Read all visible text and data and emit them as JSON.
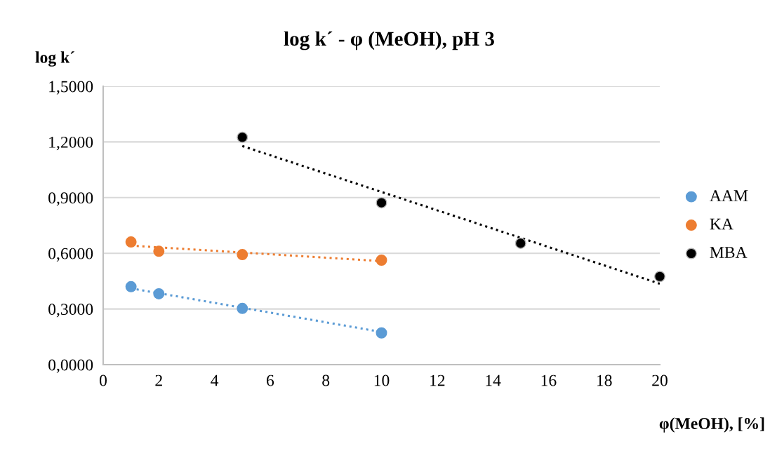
{
  "chart_data": {
    "type": "scatter",
    "title": "log k´ - φ (MeOH), pH 3",
    "ylabel": "log k´",
    "xlabel": "φ(MeOH), [%]",
    "xlim": [
      0,
      20
    ],
    "xticks": [
      0,
      2,
      4,
      6,
      8,
      10,
      12,
      14,
      16,
      18,
      20
    ],
    "ylim": [
      0,
      1.5
    ],
    "yticks": [
      {
        "value": 0,
        "label": "0,0000"
      },
      {
        "value": 0.3,
        "label": "0,3000"
      },
      {
        "value": 0.6,
        "label": "0,6000"
      },
      {
        "value": 0.9,
        "label": "0,9000"
      },
      {
        "value": 1.2,
        "label": "1,2000"
      },
      {
        "value": 1.5,
        "label": "1,5000"
      }
    ],
    "grid": "y",
    "legend": "right",
    "marker": "circle",
    "series": [
      {
        "name": "AAM",
        "color": "#5b9bd5",
        "x": [
          1,
          2,
          5,
          10
        ],
        "values": [
          0.42,
          0.382,
          0.303,
          0.171
        ]
      },
      {
        "name": "KA",
        "color": "#ed7d31",
        "x": [
          1,
          2,
          5,
          10
        ],
        "values": [
          0.661,
          0.611,
          0.593,
          0.563
        ]
      },
      {
        "name": "MBA",
        "color": "#000000",
        "x": [
          5,
          10,
          15,
          20
        ],
        "values": [
          1.225,
          0.872,
          0.654,
          0.475
        ]
      },
      {
        "type": "line",
        "color": "#5b9bd5",
        "line_style": "dotted",
        "marker": "none",
        "x": [
          1,
          10
        ],
        "values": [
          0.411,
          0.176
        ]
      },
      {
        "type": "line",
        "color": "#ed7d31",
        "line_style": "dotted",
        "marker": "none",
        "x": [
          1,
          10
        ],
        "values": [
          0.641,
          0.558
        ]
      },
      {
        "type": "line",
        "color": "#000000",
        "line_style": "dotted",
        "marker": "none",
        "x": [
          5,
          20
        ],
        "values": [
          1.178,
          0.436
        ]
      }
    ]
  }
}
